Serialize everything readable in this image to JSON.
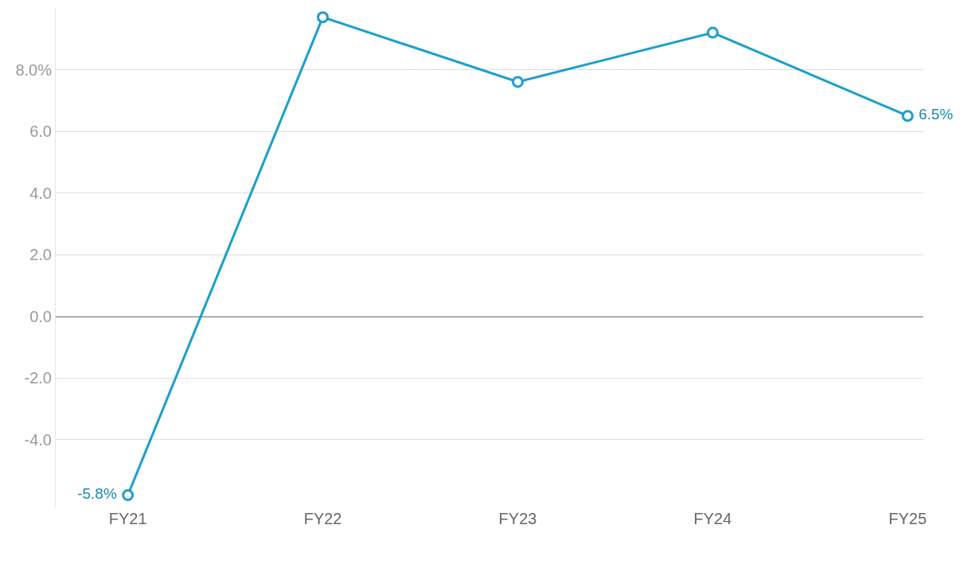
{
  "chart_data": {
    "type": "line",
    "categories": [
      "FY21",
      "FY22",
      "FY23",
      "FY24",
      "FY25"
    ],
    "series": [
      {
        "color": "#1b9fcc",
        "values": [
          -5.8,
          9.7,
          7.6,
          9.2,
          6.5
        ],
        "value_labels": [
          "-5.8%",
          null,
          null,
          null,
          "6.5%"
        ]
      }
    ],
    "ylim": [
      -6.2,
      10.0
    ],
    "yticks": [
      {
        "value": -4,
        "label": "-4.0"
      },
      {
        "value": -2,
        "label": "-2.0"
      },
      {
        "value": 0,
        "label": "0.0"
      },
      {
        "value": 2,
        "label": "2.0"
      },
      {
        "value": 4,
        "label": "4.0"
      },
      {
        "value": 6,
        "label": "6.0"
      },
      {
        "value": 8,
        "label": "8.0%"
      }
    ],
    "ref_lines": [
      {
        "axis": "y",
        "value": 0,
        "color": "#000000"
      }
    ],
    "grid": "y",
    "marker": "circle",
    "line_style": "solid",
    "legend": false
  }
}
